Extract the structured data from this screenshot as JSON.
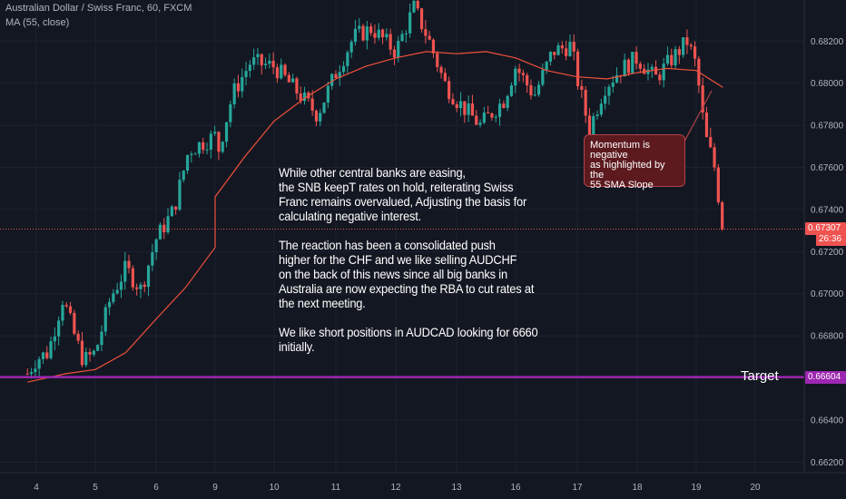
{
  "header": {
    "title": "Australian Dollar / Swiss Franc, 60, FXCM",
    "indicator": "MA (55, close)"
  },
  "colors": {
    "background": "#131722",
    "up_candle": "#26a69a",
    "down_candle": "#ef5350",
    "ma_line": "#f0513b",
    "target_line": "#9c27b0",
    "last_price_line": "#ef5350",
    "grid": "#1e2230",
    "axis_text": "#b2b5be"
  },
  "annotations": {
    "analysis_paragraphs": [
      "While other central banks are easing,\nthe SNB keepT rates on hold, reiterating Swiss\nFranc remains overvalued, Adjusting the basis for\ncalculating negative interest.",
      "The reaction has been a consolidated push\nhigher for the CHF and we like selling AUDCHF\non the back of this news since all big banks in\nAustralia are now expecting the RBA to cut rates at\nthe next meeting.",
      "We like short positions in AUDCAD looking for 6660\ninitially."
    ],
    "callout": "Momentum is negative\nas highlighted by the\n55 SMA Slope",
    "target_label": "Target"
  },
  "chart_data": {
    "type": "candlestick",
    "symbol": "Australian Dollar / Swiss Franc",
    "timeframe": "60",
    "source": "FXCM",
    "x_tick_labels": [
      "4",
      "5",
      "6",
      "9",
      "10",
      "11",
      "12",
      "13",
      "16",
      "17",
      "18",
      "19",
      "20"
    ],
    "y_tick_labels": [
      "0.68200",
      "0.68000",
      "0.67800",
      "0.67600",
      "0.67400",
      "0.67200",
      "0.67000",
      "0.66800",
      "0.66600",
      "0.66400",
      "0.66200"
    ],
    "ylim": [
      0.66025,
      0.68395
    ],
    "last_price": "0.67307",
    "countdown": "26:36",
    "target_price": "0.66604",
    "close_path": [
      {
        "day": 3.85,
        "close": 0.6662
      },
      {
        "day": 4.0,
        "close": 0.6669
      },
      {
        "day": 4.2,
        "close": 0.6672
      },
      {
        "day": 4.45,
        "close": 0.6698
      },
      {
        "day": 4.65,
        "close": 0.668
      },
      {
        "day": 4.8,
        "close": 0.6668
      },
      {
        "day": 5.0,
        "close": 0.6672
      },
      {
        "day": 5.25,
        "close": 0.6698
      },
      {
        "day": 5.5,
        "close": 0.6712
      },
      {
        "day": 5.75,
        "close": 0.6702
      },
      {
        "day": 6.0,
        "close": 0.6726
      },
      {
        "day": 6.3,
        "close": 0.674
      },
      {
        "day": 6.55,
        "close": 0.6768
      },
      {
        "day": 7.0,
        "close": 0.6775
      },
      {
        "day": 9.0,
        "close": 0.6762
      },
      {
        "day": 9.3,
        "close": 0.6795
      },
      {
        "day": 9.6,
        "close": 0.681
      },
      {
        "day": 10.0,
        "close": 0.6808
      },
      {
        "day": 10.4,
        "close": 0.6795
      },
      {
        "day": 10.7,
        "close": 0.6785
      },
      {
        "day": 11.0,
        "close": 0.6805
      },
      {
        "day": 11.3,
        "close": 0.6822
      },
      {
        "day": 11.6,
        "close": 0.6826
      },
      {
        "day": 12.0,
        "close": 0.6815
      },
      {
        "day": 12.3,
        "close": 0.6836
      },
      {
        "day": 12.55,
        "close": 0.682
      },
      {
        "day": 12.8,
        "close": 0.68
      },
      {
        "day": 13.0,
        "close": 0.6792
      },
      {
        "day": 13.4,
        "close": 0.678
      },
      {
        "day": 13.8,
        "close": 0.6792
      },
      {
        "day": 16.0,
        "close": 0.6808
      },
      {
        "day": 16.3,
        "close": 0.6794
      },
      {
        "day": 16.6,
        "close": 0.6815
      },
      {
        "day": 16.9,
        "close": 0.6818
      },
      {
        "day": 17.0,
        "close": 0.6802
      },
      {
        "day": 17.2,
        "close": 0.6778
      },
      {
        "day": 17.45,
        "close": 0.6798
      },
      {
        "day": 17.7,
        "close": 0.6806
      },
      {
        "day": 18.0,
        "close": 0.6812
      },
      {
        "day": 18.3,
        "close": 0.6802
      },
      {
        "day": 18.6,
        "close": 0.6812
      },
      {
        "day": 18.85,
        "close": 0.682
      },
      {
        "day": 19.0,
        "close": 0.6808
      },
      {
        "day": 19.15,
        "close": 0.6775
      },
      {
        "day": 19.3,
        "close": 0.6762
      },
      {
        "day": 19.45,
        "close": 0.6731
      }
    ],
    "ma55": [
      {
        "day": 3.85,
        "value": 0.6658
      },
      {
        "day": 4.5,
        "value": 0.6662
      },
      {
        "day": 5.0,
        "value": 0.6664
      },
      {
        "day": 5.5,
        "value": 0.6672
      },
      {
        "day": 6.0,
        "value": 0.6688
      },
      {
        "day": 6.5,
        "value": 0.6703
      },
      {
        "day": 7.0,
        "value": 0.6722
      },
      {
        "day": 9.0,
        "value": 0.6746
      },
      {
        "day": 9.5,
        "value": 0.6765
      },
      {
        "day": 10.0,
        "value": 0.6782
      },
      {
        "day": 10.5,
        "value": 0.6793
      },
      {
        "day": 11.0,
        "value": 0.6802
      },
      {
        "day": 11.5,
        "value": 0.6808
      },
      {
        "day": 12.0,
        "value": 0.6812
      },
      {
        "day": 12.5,
        "value": 0.6815
      },
      {
        "day": 13.0,
        "value": 0.6814
      },
      {
        "day": 13.5,
        "value": 0.6815
      },
      {
        "day": 16.0,
        "value": 0.6812
      },
      {
        "day": 16.5,
        "value": 0.6806
      },
      {
        "day": 17.0,
        "value": 0.6803
      },
      {
        "day": 17.5,
        "value": 0.6802
      },
      {
        "day": 18.0,
        "value": 0.6805
      },
      {
        "day": 18.5,
        "value": 0.6807
      },
      {
        "day": 19.0,
        "value": 0.6806
      },
      {
        "day": 19.45,
        "value": 0.6798
      }
    ]
  }
}
